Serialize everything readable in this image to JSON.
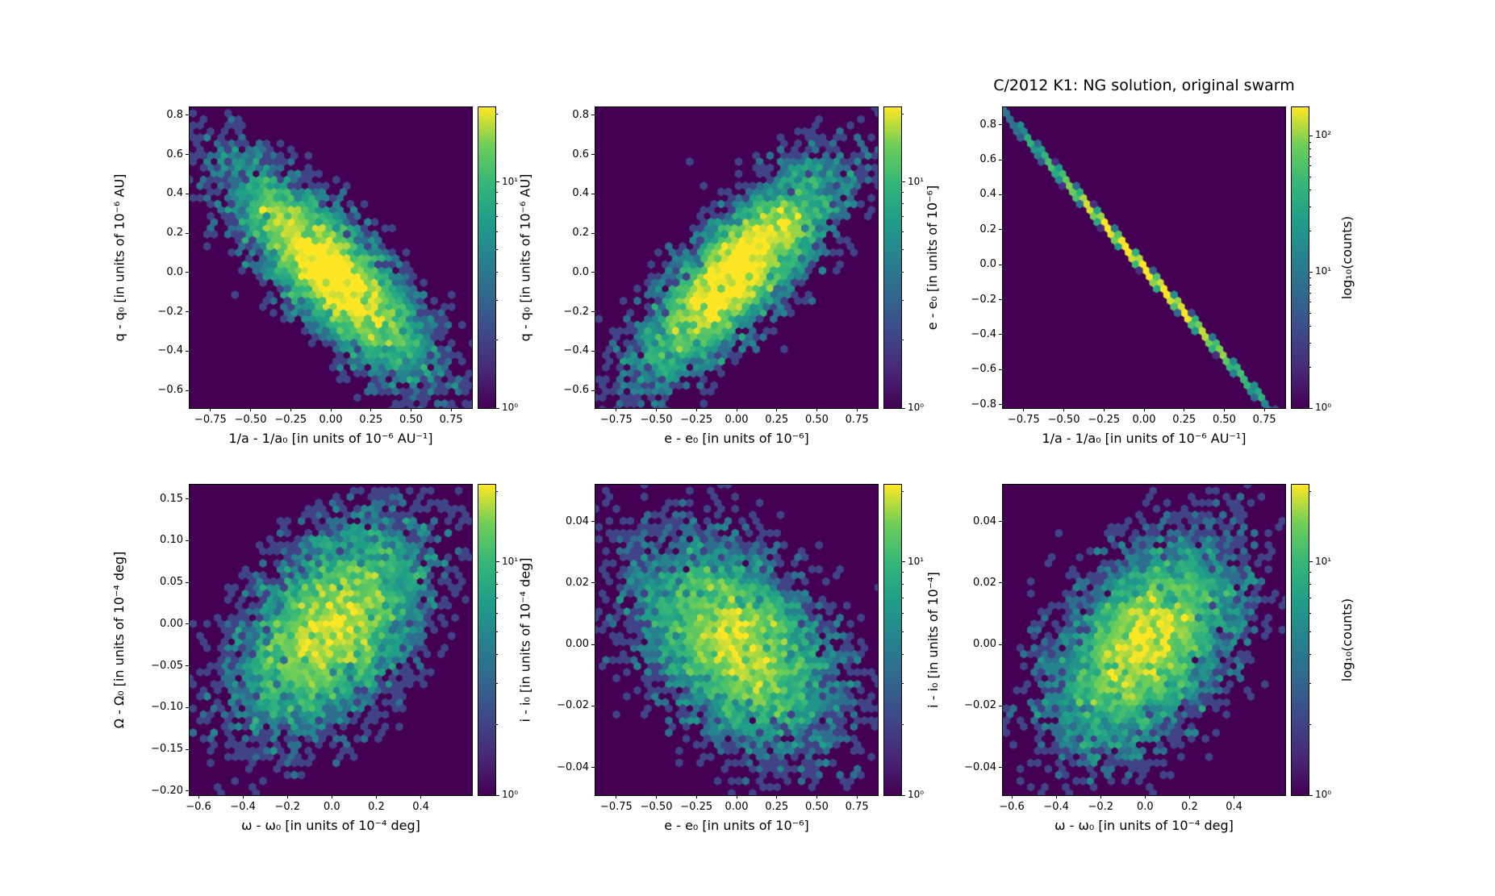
{
  "figure": {
    "title": "C/2012 K1: NG solution, original swarm",
    "background": "#ffffff",
    "colormap": "viridis",
    "zero_count_color": "#440154"
  },
  "chart_data": [
    {
      "type": "hexbin",
      "xlabel": "1/a - 1/a₀ [in units of 10⁻⁶ AU⁻¹]",
      "ylabel": "q - q₀ [in units of 10⁻⁶ AU]",
      "xlim": [
        -0.88,
        0.88
      ],
      "ylim": [
        -0.69,
        0.84
      ],
      "xtick_values": [
        -0.75,
        -0.5,
        -0.25,
        0,
        0.25,
        0.5,
        0.75
      ],
      "xtick_labels": [
        "−0.75",
        "−0.50",
        "−0.25",
        "0.00",
        "0.25",
        "0.50",
        "0.75"
      ],
      "ytick_values": [
        0.8,
        0.6,
        0.4,
        0.2,
        0,
        -0.2,
        -0.4,
        -0.6
      ],
      "ytick_labels": [
        "0.8",
        "0.6",
        "0.4",
        "0.2",
        "0.0",
        "−0.2",
        "−0.4",
        "−0.6"
      ],
      "distribution": {
        "kind": "bivariate-gaussian",
        "n": 6000,
        "cx": 0.0,
        "cy": 0.0,
        "sx": 0.3,
        "sy": 0.26,
        "rho": -0.8,
        "seed": 101
      },
      "colorbar": {
        "log_max": 1.33,
        "tick_logs": [
          1,
          0
        ],
        "tick_labels": [
          "10¹",
          "10⁰"
        ],
        "label": ""
      }
    },
    {
      "type": "hexbin",
      "xlabel": "e - e₀ [in units of 10⁻⁶]",
      "ylabel": "q - q₀ [in units of 10⁻⁶ AU]",
      "xlim": [
        -0.88,
        0.88
      ],
      "ylim": [
        -0.69,
        0.84
      ],
      "xtick_values": [
        -0.75,
        -0.5,
        -0.25,
        0,
        0.25,
        0.5,
        0.75
      ],
      "xtick_labels": [
        "−0.75",
        "−0.50",
        "−0.25",
        "0.00",
        "0.25",
        "0.50",
        "0.75"
      ],
      "ytick_values": [
        0.8,
        0.6,
        0.4,
        0.2,
        0,
        -0.2,
        -0.4,
        -0.6
      ],
      "ytick_labels": [
        "0.8",
        "0.6",
        "0.4",
        "0.2",
        "0.0",
        "−0.2",
        "−0.4",
        "−0.6"
      ],
      "distribution": {
        "kind": "bivariate-gaussian",
        "n": 6000,
        "cx": 0.0,
        "cy": 0.0,
        "sx": 0.3,
        "sy": 0.26,
        "rho": 0.8,
        "seed": 102
      },
      "colorbar": {
        "log_max": 1.33,
        "tick_logs": [
          1,
          0
        ],
        "tick_labels": [
          "10¹",
          "10⁰"
        ],
        "label": ""
      }
    },
    {
      "type": "hexbin",
      "xlabel": "1/a - 1/a₀ [in units of 10⁻⁶ AU⁻¹]",
      "ylabel": "e - e₀ [in units of 10⁻⁶]",
      "xlim": [
        -0.88,
        0.88
      ],
      "ylim": [
        -0.82,
        0.9
      ],
      "xtick_values": [
        -0.75,
        -0.5,
        -0.25,
        0,
        0.25,
        0.5,
        0.75
      ],
      "xtick_labels": [
        "−0.75",
        "−0.50",
        "−0.25",
        "0.00",
        "0.25",
        "0.50",
        "0.75"
      ],
      "ytick_values": [
        0.8,
        0.6,
        0.4,
        0.2,
        0,
        -0.2,
        -0.4,
        -0.6,
        -0.8
      ],
      "ytick_labels": [
        "0.8",
        "0.6",
        "0.4",
        "0.2",
        "0.0",
        "−0.2",
        "−0.4",
        "−0.6",
        "−0.8"
      ],
      "distribution": {
        "kind": "bivariate-gaussian",
        "n": 6000,
        "cx": 0.0,
        "cy": -0.02,
        "sx": 0.33,
        "sy": 0.336,
        "rho": -0.9999,
        "seed": 103
      },
      "colorbar": {
        "log_max": 2.21,
        "tick_logs": [
          2,
          1,
          0
        ],
        "tick_labels": [
          "10²",
          "10¹",
          "10⁰"
        ],
        "label": "log₁₀(counts)"
      }
    },
    {
      "type": "hexbin",
      "xlabel": "ω - ω₀ [in units of 10⁻⁴ deg]",
      "ylabel": "Ω - Ω₀ [in units of 10⁻⁴ deg]",
      "xlim": [
        -0.64,
        0.63
      ],
      "ylim": [
        -0.205,
        0.167
      ],
      "xtick_values": [
        -0.6,
        -0.4,
        -0.2,
        0,
        0.2,
        0.4
      ],
      "xtick_labels": [
        "−0.6",
        "−0.4",
        "−0.2",
        "0.0",
        "0.2",
        "0.4"
      ],
      "ytick_values": [
        0.15,
        0.1,
        0.05,
        0,
        -0.05,
        -0.1,
        -0.15,
        -0.2
      ],
      "ytick_labels": [
        "0.15",
        "0.10",
        "0.05",
        "0.00",
        "−0.05",
        "−0.10",
        "−0.15",
        "−0.20"
      ],
      "distribution": {
        "kind": "bivariate-gaussian",
        "n": 6000,
        "cx": 0.0,
        "cy": -0.005,
        "sx": 0.21,
        "sy": 0.062,
        "rho": 0.45,
        "seed": 104
      },
      "colorbar": {
        "log_max": 1.33,
        "tick_logs": [
          1,
          0
        ],
        "tick_labels": [
          "10¹",
          "10⁰"
        ],
        "label": ""
      }
    },
    {
      "type": "hexbin",
      "xlabel": "e - e₀ [in units of 10⁻⁶]",
      "ylabel": "i - i₀ [in units of 10⁻⁴ deg]",
      "xlim": [
        -0.88,
        0.88
      ],
      "ylim": [
        -0.049,
        0.052
      ],
      "xtick_values": [
        -0.75,
        -0.5,
        -0.25,
        0,
        0.25,
        0.5,
        0.75
      ],
      "xtick_labels": [
        "−0.75",
        "−0.50",
        "−0.25",
        "0.00",
        "0.25",
        "0.50",
        "0.75"
      ],
      "ytick_values": [
        0.04,
        0.02,
        0,
        -0.02,
        -0.04
      ],
      "ytick_labels": [
        "0.04",
        "0.02",
        "0.00",
        "−0.02",
        "−0.04"
      ],
      "distribution": {
        "kind": "bivariate-gaussian",
        "n": 6000,
        "cx": 0.0,
        "cy": 0.0,
        "sx": 0.3,
        "sy": 0.0165,
        "rho": -0.45,
        "seed": 105
      },
      "colorbar": {
        "log_max": 1.33,
        "tick_logs": [
          1,
          0
        ],
        "tick_labels": [
          "10¹",
          "10⁰"
        ],
        "label": ""
      }
    },
    {
      "type": "hexbin",
      "xlabel": "ω - ω₀ [in units of 10⁻⁴ deg]",
      "ylabel": "i - i₀ [in units of 10⁻⁴]",
      "xlim": [
        -0.64,
        0.63
      ],
      "ylim": [
        -0.049,
        0.052
      ],
      "xtick_values": [
        -0.6,
        -0.4,
        -0.2,
        0,
        0.2,
        0.4
      ],
      "xtick_labels": [
        "−0.6",
        "−0.4",
        "−0.2",
        "0.0",
        "0.2",
        "0.4"
      ],
      "ytick_values": [
        0.04,
        0.02,
        0,
        -0.02,
        -0.04
      ],
      "ytick_labels": [
        "0.04",
        "0.02",
        "0.00",
        "−0.02",
        "−0.04"
      ],
      "distribution": {
        "kind": "bivariate-gaussian",
        "n": 6000,
        "cx": 0.0,
        "cy": 0.0,
        "sx": 0.2,
        "sy": 0.0165,
        "rho": 0.45,
        "seed": 106
      },
      "colorbar": {
        "log_max": 1.33,
        "tick_logs": [
          1,
          0
        ],
        "tick_labels": [
          "10¹",
          "10⁰"
        ],
        "label": "log₁₀(counts)"
      }
    }
  ]
}
